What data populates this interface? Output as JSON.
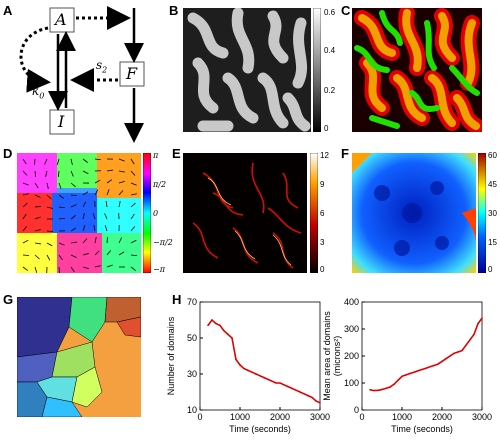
{
  "panels": {
    "A": {
      "label": "A",
      "nodes": {
        "A": "A",
        "F": "F",
        "I": "I"
      },
      "rates": {
        "k0": "k",
        "k0_sub": "0",
        "s2": "s",
        "s2_sub": "2"
      }
    },
    "B": {
      "label": "B",
      "colorbar_ticks": [
        "0.6",
        "0.4",
        "0.2",
        "0"
      ]
    },
    "C": {
      "label": "C"
    },
    "D": {
      "label": "D",
      "colorbar_ticks": [
        "π",
        "π/2",
        "0",
        "−π/2",
        "−π"
      ]
    },
    "E": {
      "label": "E",
      "colorbar_ticks": [
        "12",
        "9",
        "6",
        "3",
        "0"
      ]
    },
    "F": {
      "label": "F",
      "colorbar_ticks": [
        "60",
        "45",
        "30",
        "15",
        "0"
      ]
    },
    "G": {
      "label": "G"
    },
    "H": {
      "label": "H"
    }
  },
  "chart_data": [
    {
      "type": "line",
      "title": "",
      "xlabel": "Time (seconds)",
      "ylabel": "Number of domains",
      "xlim": [
        0,
        3000
      ],
      "ylim": [
        10,
        70
      ],
      "xticks": [
        "0",
        "1000",
        "2000",
        "3000"
      ],
      "yticks": [
        "10",
        "30",
        "50",
        "70"
      ],
      "series_color": "#e00000",
      "x": [
        200,
        300,
        400,
        500,
        600,
        700,
        800,
        900,
        1000,
        1100,
        1200,
        1300,
        1400,
        1500,
        1600,
        1700,
        1800,
        1900,
        2000,
        2100,
        2200,
        2300,
        2400,
        2500,
        2600,
        2700,
        2800,
        2900,
        3000
      ],
      "y": [
        57,
        60,
        58,
        57,
        54,
        52,
        50,
        38,
        35,
        33,
        32,
        31,
        30,
        29,
        28,
        27,
        26,
        25,
        25,
        24,
        23,
        22,
        21,
        20,
        19,
        18,
        17,
        15,
        14
      ]
    },
    {
      "type": "line",
      "title": "",
      "xlabel": "Time (seconds)",
      "ylabel": "Mean area of domains",
      "ylabel2": "(microns²)",
      "xlim": [
        0,
        3000
      ],
      "ylim": [
        0,
        400
      ],
      "xticks": [
        "0",
        "1000",
        "2000",
        "3000"
      ],
      "yticks": [
        "0",
        "100",
        "200",
        "300",
        "400"
      ],
      "series_color": "#e00000",
      "x": [
        200,
        300,
        400,
        500,
        600,
        700,
        800,
        900,
        1000,
        1100,
        1200,
        1300,
        1400,
        1500,
        1600,
        1700,
        1800,
        1900,
        2000,
        2100,
        2200,
        2300,
        2400,
        2500,
        2600,
        2700,
        2800,
        2900,
        3000
      ],
      "y": [
        75,
        72,
        73,
        76,
        80,
        85,
        95,
        110,
        125,
        130,
        135,
        140,
        145,
        150,
        155,
        160,
        165,
        170,
        180,
        190,
        200,
        210,
        215,
        220,
        240,
        260,
        280,
        320,
        340
      ]
    }
  ]
}
